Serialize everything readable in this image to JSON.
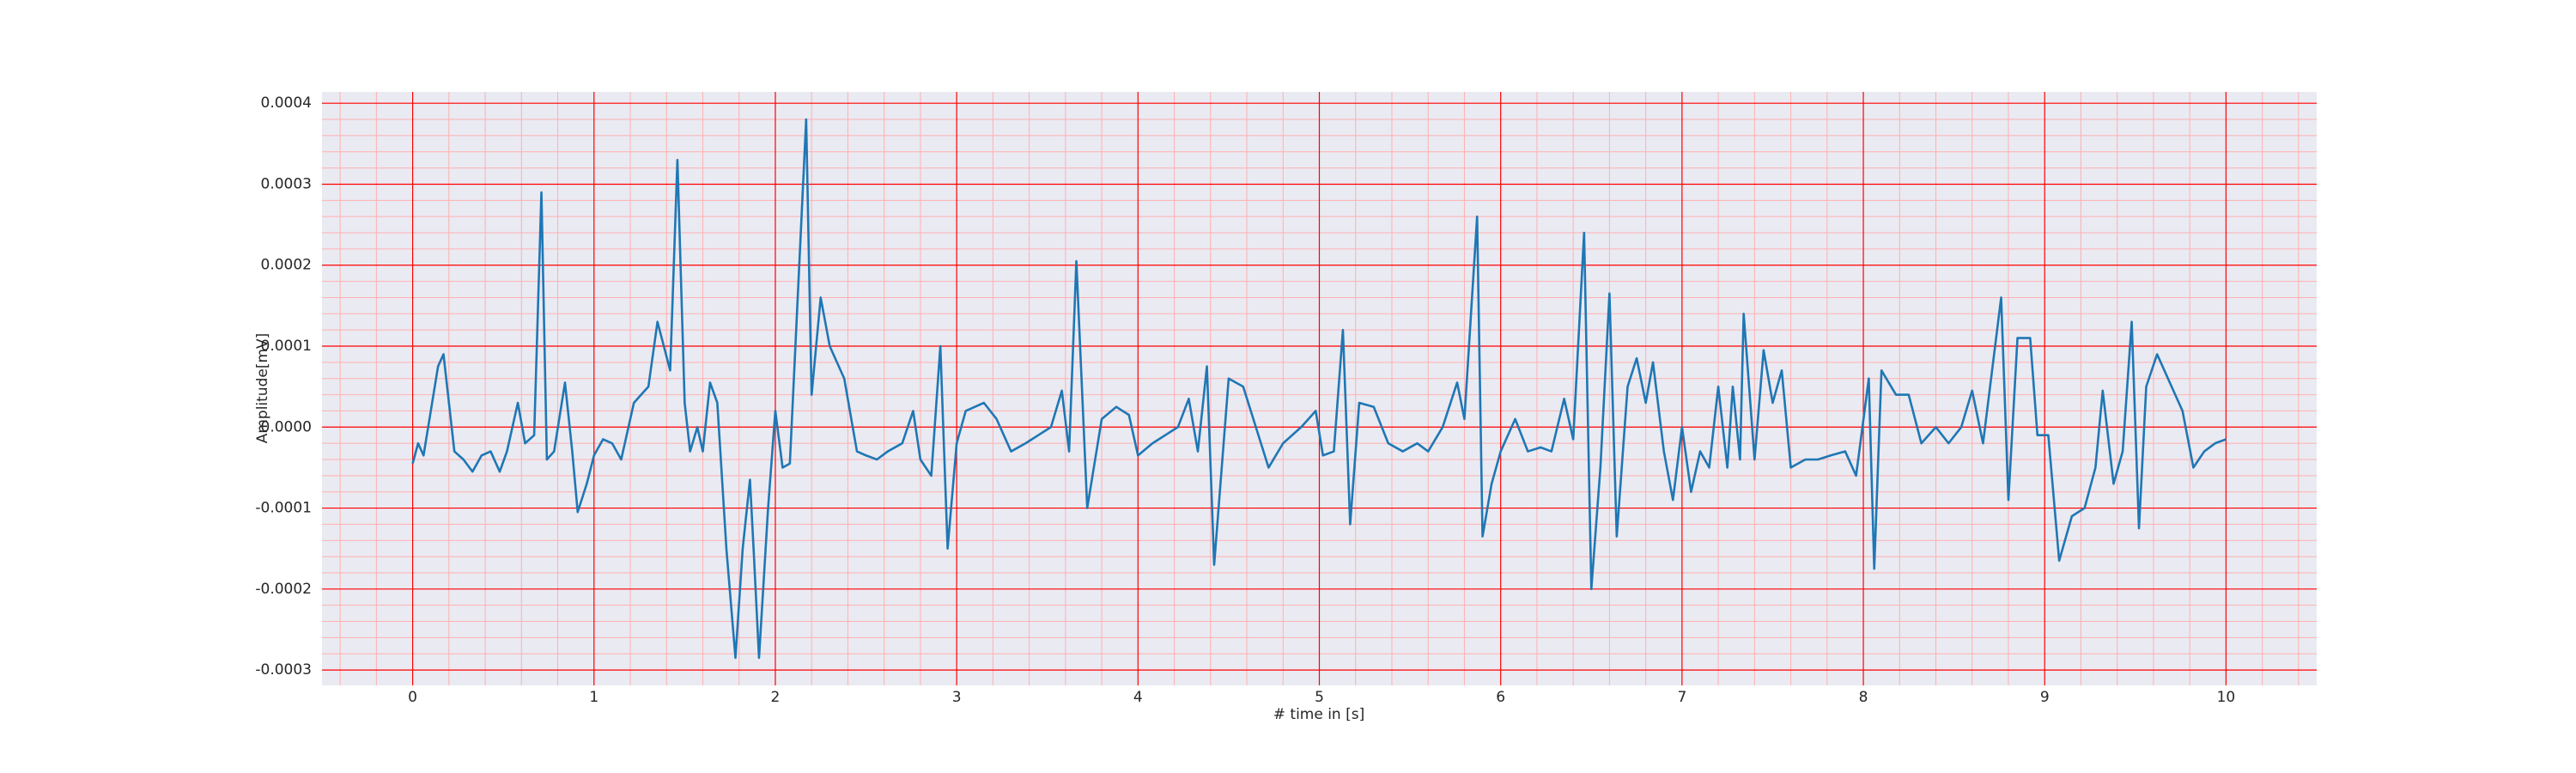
{
  "chart_data": {
    "type": "line",
    "xlabel": "# time in [s]",
    "ylabel": "Amplitude[mV]",
    "xlim": [
      -0.5,
      10.5
    ],
    "ylim": [
      -0.000319,
      0.000414
    ],
    "xticks": [
      0,
      1,
      2,
      3,
      4,
      5,
      6,
      7,
      8,
      9,
      10
    ],
    "yticks": [
      -0.0003,
      -0.0002,
      -0.0001,
      {
        "value": 0,
        "label": "0.0000"
      },
      0.0001,
      0.0002,
      0.0003,
      0.0004
    ],
    "grid": true,
    "minor_grid_divisions": 5,
    "background": "#eaeaf2",
    "grid_color": "#ff0000",
    "minor_grid_color": "#ffb0b0",
    "x": [
      0,
      0.03,
      0.06,
      0.1,
      0.14,
      0.17,
      0.2,
      0.23,
      0.28,
      0.33,
      0.38,
      0.43,
      0.48,
      0.52,
      0.58,
      0.62,
      0.67,
      0.71,
      0.74,
      0.78,
      0.84,
      0.88,
      0.91,
      0.96,
      1.0,
      1.05,
      1.1,
      1.15,
      1.22,
      1.3,
      1.35,
      1.42,
      1.46,
      1.5,
      1.53,
      1.57,
      1.6,
      1.64,
      1.68,
      1.73,
      1.78,
      1.82,
      1.86,
      1.88,
      1.91,
      1.96,
      2.0,
      2.04,
      2.08,
      2.17,
      2.2,
      2.25,
      2.3,
      2.38,
      2.45,
      2.5,
      2.56,
      2.62,
      2.7,
      2.76,
      2.8,
      2.86,
      2.91,
      2.95,
      3.0,
      3.05,
      3.15,
      3.22,
      3.3,
      3.38,
      3.45,
      3.52,
      3.58,
      3.62,
      3.66,
      3.72,
      3.76,
      3.8,
      3.88,
      3.95,
      4.0,
      4.08,
      4.15,
      4.22,
      4.28,
      4.33,
      4.38,
      4.42,
      4.5,
      4.58,
      4.65,
      4.72,
      4.8,
      4.9,
      4.98,
      5.02,
      5.08,
      5.13,
      5.17,
      5.22,
      5.3,
      5.38,
      5.46,
      5.54,
      5.6,
      5.68,
      5.76,
      5.8,
      5.87,
      5.9,
      5.95,
      6.0,
      6.08,
      6.15,
      6.22,
      6.28,
      6.35,
      6.4,
      6.46,
      6.5,
      6.55,
      6.6,
      6.64,
      6.7,
      6.75,
      6.8,
      6.84,
      6.9,
      6.95,
      7.0,
      7.05,
      7.1,
      7.15,
      7.2,
      7.25,
      7.28,
      7.32,
      7.34,
      7.4,
      7.45,
      7.5,
      7.55,
      7.6,
      7.68,
      7.75,
      7.82,
      7.9,
      7.96,
      8.03,
      8.06,
      8.1,
      8.18,
      8.25,
      8.32,
      8.4,
      8.47,
      8.54,
      8.6,
      8.66,
      8.76,
      8.8,
      8.85,
      8.92,
      8.96,
      9.02,
      9.08,
      9.15,
      9.22,
      9.28,
      9.32,
      9.38,
      9.43,
      9.48,
      9.52,
      9.56,
      9.62,
      9.7,
      9.76,
      9.82,
      9.88,
      9.94,
      10.0
    ],
    "series": [
      {
        "name": "Amplitude",
        "color": "#1f77b4",
        "values": [
          -4.5e-05,
          -2e-05,
          -3.5e-05,
          2e-05,
          7.5e-05,
          9e-05,
          3e-05,
          -3e-05,
          -4e-05,
          -5.5e-05,
          -3.5e-05,
          -3e-05,
          -5.5e-05,
          -3e-05,
          3e-05,
          -2e-05,
          -1e-05,
          0.00029,
          -4e-05,
          -3e-05,
          5.5e-05,
          -3e-05,
          -0.000105,
          -7e-05,
          -3.5e-05,
          -1.5e-05,
          -2e-05,
          -4e-05,
          3e-05,
          5e-05,
          0.00013,
          7e-05,
          0.00033,
          3e-05,
          -3e-05,
          0,
          -3e-05,
          5.5e-05,
          3e-05,
          -0.00015,
          -0.000285,
          -0.00015,
          -6.5e-05,
          -0.00015,
          -0.000285,
          -0.0001,
          2e-05,
          -5e-05,
          -4.5e-05,
          0.00038,
          4e-05,
          0.00016,
          0.0001,
          6e-05,
          -3e-05,
          -3.5e-05,
          -4e-05,
          -3e-05,
          -2e-05,
          2e-05,
          -4e-05,
          -6e-05,
          0.0001,
          -0.00015,
          -2e-05,
          2e-05,
          3e-05,
          1e-05,
          -3e-05,
          -2e-05,
          -1e-05,
          0,
          4.5e-05,
          -3e-05,
          0.000205,
          -0.0001,
          -4.5e-05,
          1e-05,
          2.5e-05,
          1.5e-05,
          -3.5e-05,
          -2e-05,
          -1e-05,
          0,
          3.5e-05,
          -3e-05,
          7.5e-05,
          -0.00017,
          6e-05,
          5e-05,
          0,
          -5e-05,
          -2e-05,
          0,
          2e-05,
          -3.5e-05,
          -3e-05,
          0.00012,
          -0.00012,
          3e-05,
          2.5e-05,
          -2e-05,
          -3e-05,
          -2e-05,
          -3e-05,
          0,
          5.5e-05,
          1e-05,
          0.00026,
          -0.000135,
          -7e-05,
          -3e-05,
          1e-05,
          -3e-05,
          -2.5e-05,
          -3e-05,
          3.5e-05,
          -1.5e-05,
          0.00024,
          -0.0002,
          -5e-05,
          0.000165,
          -0.000135,
          5e-05,
          8.5e-05,
          3e-05,
          8e-05,
          -3e-05,
          -9e-05,
          0,
          -8e-05,
          -3e-05,
          -5e-05,
          5e-05,
          -5e-05,
          5e-05,
          -4e-05,
          0.00014,
          -4e-05,
          9.5e-05,
          3e-05,
          7e-05,
          -5e-05,
          -4e-05,
          -4e-05,
          -3.5e-05,
          -3e-05,
          -6e-05,
          6e-05,
          -0.000175,
          7e-05,
          4e-05,
          4e-05,
          -2e-05,
          0,
          -2e-05,
          0,
          4.5e-05,
          -2e-05,
          0.00016,
          -9e-05,
          0.00011,
          0.00011,
          -1e-05,
          -1e-05,
          -0.000165,
          -0.00011,
          -0.0001,
          -5e-05,
          4.5e-05,
          -7e-05,
          -3e-05,
          0.00013,
          -0.000125,
          5e-05,
          9e-05,
          5e-05,
          2e-05,
          -5e-05,
          -3e-05,
          -2e-05,
          -1.5e-05
        ]
      }
    ]
  }
}
